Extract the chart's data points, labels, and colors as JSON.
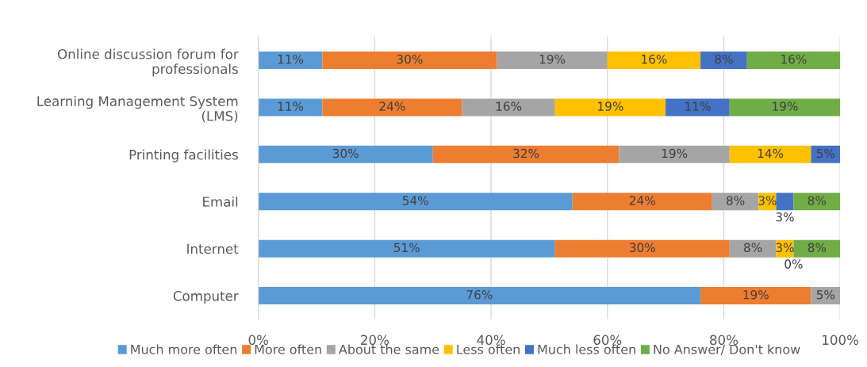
{
  "chart_data": {
    "type": "bar",
    "orientation": "horizontal",
    "stacked": true,
    "categories": [
      "Online discussion forum for\nprofessionals",
      "Learning Management System\n(LMS)",
      "Printing facilities",
      "Email",
      "Internet",
      "Computer"
    ],
    "series": [
      {
        "name": "Much more often",
        "color": "#5b9bd5",
        "values": [
          11,
          11,
          30,
          54,
          51,
          76
        ],
        "value_labels": [
          "11%",
          "11%",
          "30%",
          "54%",
          "51%",
          "76%"
        ]
      },
      {
        "name": "More often",
        "color": "#ed7d31",
        "values": [
          30,
          24,
          32,
          24,
          30,
          19
        ],
        "value_labels": [
          "30%",
          "24%",
          "32%",
          "24%",
          "30%",
          "19%"
        ]
      },
      {
        "name": "About the same",
        "color": "#a5a5a5",
        "values": [
          19,
          16,
          19,
          8,
          8,
          5
        ],
        "value_labels": [
          "19%",
          "16%",
          "19%",
          "8%",
          "8%",
          "5%"
        ]
      },
      {
        "name": "Less often",
        "color": "#ffc000",
        "values": [
          16,
          19,
          14,
          3,
          3,
          null
        ],
        "value_labels": [
          "16%",
          "19%",
          "14%",
          "3%",
          "3%",
          null
        ]
      },
      {
        "name": "Much less often",
        "color": "#4472c4",
        "values": [
          8,
          11,
          5,
          3,
          0,
          null
        ],
        "value_labels": [
          "8%",
          "11%",
          "5%",
          "3%",
          "0%",
          null
        ]
      },
      {
        "name": "No Answer/ Don't know",
        "color": "#70ad47",
        "values": [
          16,
          19,
          null,
          8,
          8,
          null
        ],
        "value_labels": [
          "16%",
          "19%",
          null,
          "8%",
          "8%",
          null
        ]
      }
    ],
    "xlim": [
      0,
      100
    ],
    "xticks": [
      {
        "value": 0,
        "label": "0%"
      },
      {
        "value": 20,
        "label": "20%"
      },
      {
        "value": 40,
        "label": "40%"
      },
      {
        "value": 60,
        "label": "60%"
      },
      {
        "value": 80,
        "label": "80%"
      },
      {
        "value": 100,
        "label": "100%"
      }
    ],
    "grid": "x",
    "legend": "bottom"
  }
}
